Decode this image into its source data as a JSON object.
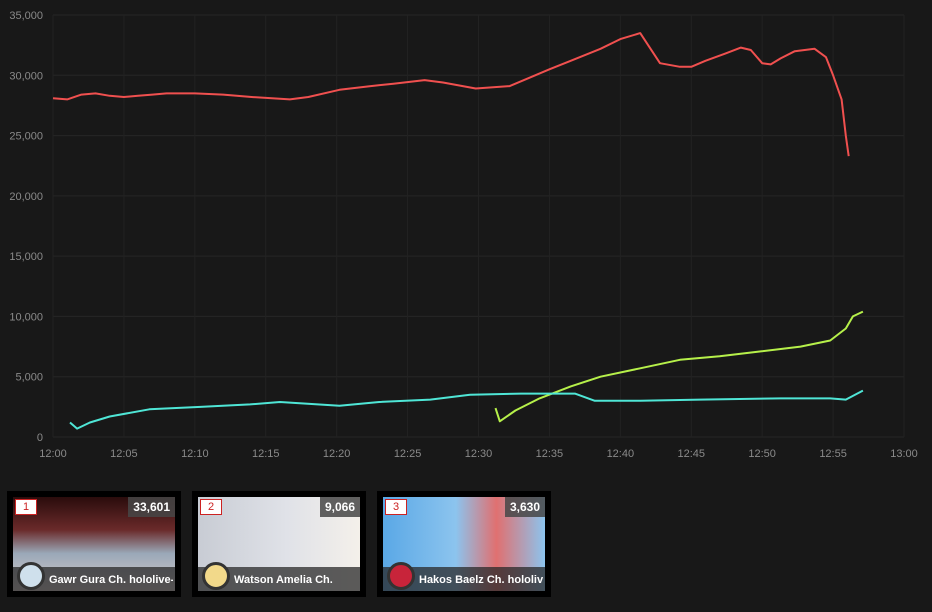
{
  "chart_data": {
    "type": "line",
    "title": "",
    "xlabel": "",
    "ylabel": "",
    "ylim": [
      0,
      35000
    ],
    "xlim": [
      "12:00",
      "13:00"
    ],
    "yticks": [
      "0",
      "5,000",
      "10,000",
      "15,000",
      "20,000",
      "25,000",
      "30,000",
      "35,000"
    ],
    "xticks": [
      "12:00",
      "12:05",
      "12:10",
      "12:15",
      "12:20",
      "12:25",
      "12:30",
      "12:35",
      "12:40",
      "12:45",
      "12:50",
      "12:55",
      "13:00"
    ],
    "grid": true,
    "series": [
      {
        "name": "Gawr Gura Ch. hololive-",
        "color": "#f0504f",
        "x": [
          0,
          1,
          2,
          3,
          4,
          5,
          6,
          7,
          8,
          10,
          12,
          14,
          16.7,
          18,
          20.2,
          22.4,
          24,
          26.2,
          27.5,
          29.8,
          32.2,
          33.6,
          35,
          36.5,
          38.6,
          40,
          41.4,
          42.8,
          44.2,
          45,
          46,
          47.4,
          48.5,
          49.2,
          50,
          50.6,
          51.3,
          52.3,
          53.7,
          54.5,
          55,
          55.6,
          55.9,
          56.1
        ],
        "y": [
          28100,
          28000,
          28400,
          28500,
          28300,
          28200,
          28300,
          28400,
          28500,
          28500,
          28400,
          28200,
          28000,
          28200,
          28800,
          29100,
          29300,
          29600,
          29400,
          28900,
          29100,
          29800,
          30500,
          31200,
          32200,
          33000,
          33500,
          31000,
          30700,
          30700,
          31200,
          31800,
          32300,
          32100,
          31000,
          30900,
          31400,
          32000,
          32200,
          31500,
          30000,
          28000,
          25000,
          23300
        ]
      },
      {
        "name": "Watson Amelia Ch.",
        "color": "#b6f04a",
        "x": [
          31.2,
          31.5,
          32.6,
          34.3,
          36.5,
          38.6,
          41.4,
          44.2,
          47,
          49.9,
          52.7,
          54.8,
          55.9,
          56.4,
          57.1
        ],
        "y": [
          2400,
          1300,
          2200,
          3200,
          4200,
          5000,
          5700,
          6400,
          6700,
          7100,
          7500,
          8000,
          9000,
          10000,
          10400
        ]
      },
      {
        "name": "Hakos Baelz Ch. hololive-",
        "color": "#4fe6d6",
        "x": [
          1.2,
          1.7,
          2.6,
          4,
          6.8,
          10.4,
          13.9,
          16,
          20.2,
          23,
          26.6,
          29.4,
          33,
          36.8,
          38.2,
          41.4,
          45.6,
          51.3,
          54.8,
          55.9,
          57.1
        ],
        "y": [
          1200,
          700,
          1200,
          1700,
          2300,
          2500,
          2700,
          2900,
          2600,
          2900,
          3100,
          3500,
          3600,
          3600,
          3000,
          3000,
          3100,
          3200,
          3200,
          3100,
          3850
        ]
      }
    ]
  },
  "cards": [
    {
      "rank": "1",
      "count": "33,601",
      "name": "Gawr Gura Ch. hololive-",
      "color": "#f0504f"
    },
    {
      "rank": "2",
      "count": "9,066",
      "name": "Watson Amelia Ch.",
      "color": "#b6f04a"
    },
    {
      "rank": "3",
      "count": "3,630",
      "name": "Hakos Baelz Ch. hololive-",
      "color": "#4fe6d6"
    }
  ]
}
